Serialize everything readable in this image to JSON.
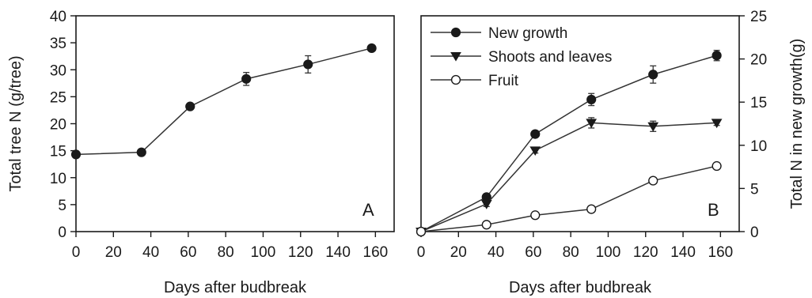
{
  "chart_data": [
    {
      "type": "line",
      "panel_label": "A",
      "xlabel": "Days after budbreak",
      "ylabel": "Total tree N (g/tree)",
      "xlim": [
        0,
        170
      ],
      "ylim": [
        0,
        40
      ],
      "xticks": [
        0,
        20,
        40,
        60,
        80,
        100,
        120,
        140,
        160
      ],
      "yticks": [
        0,
        5,
        10,
        15,
        20,
        25,
        30,
        35,
        40
      ],
      "series": [
        {
          "name": "",
          "marker": "filled-circle",
          "x": [
            0,
            35,
            61,
            91,
            124,
            158
          ],
          "y": [
            14.3,
            14.7,
            23.2,
            28.3,
            31.0,
            34.0
          ],
          "err": [
            0.4,
            0.4,
            0.4,
            1.2,
            1.6,
            0.4
          ]
        }
      ]
    },
    {
      "type": "line",
      "panel_label": "B",
      "xlabel": "Days after budbreak",
      "ylabel": "Total N in new growth(g)",
      "yaxis_side": "right",
      "legend_position": "top-left",
      "xlim": [
        0,
        170
      ],
      "ylim": [
        0,
        25
      ],
      "xticks": [
        0,
        20,
        40,
        60,
        80,
        100,
        120,
        140,
        160
      ],
      "yticks": [
        0,
        5,
        10,
        15,
        20,
        25
      ],
      "series": [
        {
          "name": "New growth",
          "marker": "filled-circle",
          "x": [
            0,
            35,
            61,
            91,
            124,
            158
          ],
          "y": [
            0,
            4.0,
            11.3,
            15.3,
            18.2,
            20.4
          ],
          "err": [
            0,
            0.3,
            0.3,
            0.7,
            1.0,
            0.6
          ]
        },
        {
          "name": "Shoots and leaves",
          "marker": "filled-triangle-down",
          "x": [
            0,
            35,
            61,
            91,
            124,
            158
          ],
          "y": [
            0,
            3.2,
            9.4,
            12.6,
            12.2,
            12.6
          ],
          "err": [
            0,
            0.3,
            0.3,
            0.6,
            0.6,
            0.3
          ]
        },
        {
          "name": "Fruit",
          "marker": "open-circle",
          "x": [
            0,
            35,
            61,
            91,
            124,
            158
          ],
          "y": [
            0,
            0.8,
            1.9,
            2.6,
            5.9,
            7.6
          ],
          "err": [
            0,
            0.1,
            0.1,
            0.2,
            0.3,
            0.3
          ]
        }
      ]
    }
  ]
}
